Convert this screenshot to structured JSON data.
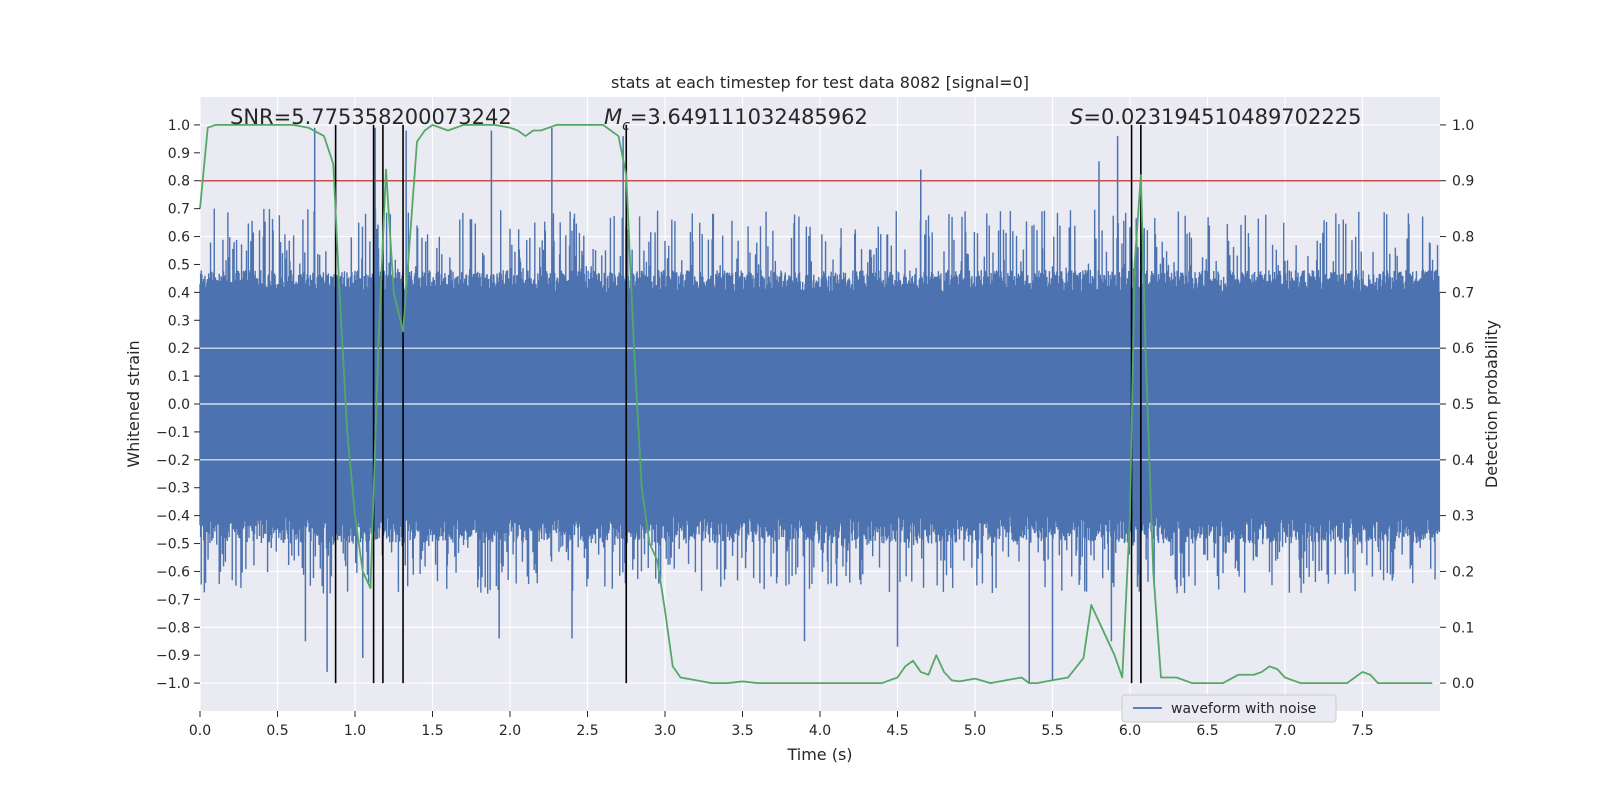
{
  "chart_data": {
    "type": "line",
    "title": "stats at each timestep for test data 8082 [signal=0]",
    "xlabel": "Time (s)",
    "ylabel": "Whitened strain",
    "y2label": "Detection probability",
    "xlim": [
      0.0,
      8.0
    ],
    "ylim": [
      -1.1,
      1.1
    ],
    "y2lim": [
      -0.05,
      1.05
    ],
    "x_ticks": [
      0.0,
      0.5,
      1.0,
      1.5,
      2.0,
      2.5,
      3.0,
      3.5,
      4.0,
      4.5,
      5.0,
      5.5,
      6.0,
      6.5,
      7.0,
      7.5
    ],
    "x_tick_labels": [
      "0.0",
      "0.5",
      "1.0",
      "1.5",
      "2.0",
      "2.5",
      "3.0",
      "3.5",
      "4.0",
      "4.5",
      "5.0",
      "5.5",
      "6.0",
      "6.5",
      "7.0",
      "7.5"
    ],
    "y_ticks": [
      1.0,
      0.9,
      0.8,
      0.7,
      0.6,
      0.5,
      0.4,
      0.3,
      0.2,
      0.1,
      0.0,
      -0.1,
      -0.2,
      -0.3,
      -0.4,
      -0.5,
      -0.6,
      -0.7,
      -0.8,
      -0.9,
      -1.0
    ],
    "y_tick_labels": [
      "1.0",
      "0.9",
      "0.8",
      "0.7",
      "0.6",
      "0.5",
      "0.4",
      "0.3",
      "0.2",
      "0.1",
      "0.0",
      "−0.1",
      "−0.2",
      "−0.3",
      "−0.4",
      "−0.5",
      "−0.6",
      "−0.7",
      "−0.8",
      "−0.9",
      "−1.0"
    ],
    "y2_ticks": [
      1.0,
      0.9,
      0.8,
      0.7,
      0.6,
      0.5,
      0.4,
      0.3,
      0.2,
      0.1,
      0.0
    ],
    "y2_tick_labels": [
      "1.0",
      "0.9",
      "0.8",
      "0.7",
      "0.6",
      "0.5",
      "0.4",
      "0.3",
      "0.2",
      "0.1",
      "0.0"
    ],
    "grid": true,
    "legend": {
      "entries": [
        "waveform with noise"
      ],
      "placement": "lower-right"
    },
    "annotations": {
      "snr": "SNR=5.775358200073242",
      "mc_symbol": "M",
      "mc_subscript": "c",
      "mc_value": "=3.649111032485962",
      "s_symbol": "S",
      "s_value": "=0.023194510489702225"
    },
    "threshold": {
      "value": 0.9,
      "axis": "y2",
      "color": "#c44e52"
    },
    "vertical_lines": [
      0.875,
      1.12,
      1.18,
      1.31,
      2.75,
      6.01,
      6.07
    ],
    "waveform": {
      "name": "waveform with noise",
      "color": "#4c72b0",
      "samples": 2000,
      "core_amplitude": 0.4,
      "seed": 8082,
      "spikes": [
        {
          "x": 0.74,
          "y": 0.99
        },
        {
          "x": 1.13,
          "y": 0.99
        },
        {
          "x": 1.33,
          "y": 0.98
        },
        {
          "x": 1.88,
          "y": 0.98
        },
        {
          "x": 2.27,
          "y": 0.99
        },
        {
          "x": 2.73,
          "y": 0.96
        },
        {
          "x": 4.65,
          "y": 0.84
        },
        {
          "x": 5.8,
          "y": 0.87
        },
        {
          "x": 5.92,
          "y": 0.96
        },
        {
          "x": 0.82,
          "y": -0.96
        },
        {
          "x": 1.05,
          "y": -0.91
        },
        {
          "x": 5.35,
          "y": -1.0
        },
        {
          "x": 5.5,
          "y": -0.99
        },
        {
          "x": 5.88,
          "y": -0.85
        },
        {
          "x": 4.5,
          "y": -0.87
        },
        {
          "x": 3.9,
          "y": -0.85
        },
        {
          "x": 0.68,
          "y": -0.85
        },
        {
          "x": 1.93,
          "y": -0.84
        },
        {
          "x": 2.4,
          "y": -0.84
        }
      ]
    },
    "detection_probability": {
      "color": "#55a868",
      "x": [
        0.0,
        0.05,
        0.1,
        0.2,
        0.3,
        0.4,
        0.5,
        0.6,
        0.7,
        0.8,
        0.86,
        0.9,
        0.95,
        1.0,
        1.05,
        1.1,
        1.15,
        1.2,
        1.25,
        1.31,
        1.35,
        1.4,
        1.45,
        1.5,
        1.6,
        1.7,
        1.8,
        1.9,
        2.0,
        2.05,
        2.1,
        2.15,
        2.2,
        2.3,
        2.4,
        2.5,
        2.6,
        2.7,
        2.75,
        2.8,
        2.85,
        2.9,
        2.95,
        3.0,
        3.05,
        3.1,
        3.2,
        3.3,
        3.4,
        3.5,
        3.6,
        3.7,
        3.8,
        3.9,
        4.0,
        4.1,
        4.2,
        4.3,
        4.4,
        4.5,
        4.55,
        4.6,
        4.65,
        4.7,
        4.75,
        4.8,
        4.85,
        4.9,
        5.0,
        5.1,
        5.2,
        5.3,
        5.35,
        5.4,
        5.5,
        5.6,
        5.7,
        5.75,
        5.8,
        5.85,
        5.9,
        5.95,
        6.0,
        6.03,
        6.07,
        6.1,
        6.15,
        6.2,
        6.3,
        6.4,
        6.5,
        6.6,
        6.7,
        6.8,
        6.85,
        6.9,
        6.95,
        7.0,
        7.05,
        7.1,
        7.2,
        7.3,
        7.4,
        7.5,
        7.55,
        7.6,
        7.7,
        7.8,
        7.9,
        7.95
      ],
      "y": [
        0.85,
        0.995,
        1.0,
        1.0,
        1.0,
        1.0,
        1.0,
        1.0,
        0.995,
        0.98,
        0.93,
        0.7,
        0.45,
        0.3,
        0.2,
        0.17,
        0.6,
        0.92,
        0.7,
        0.63,
        0.78,
        0.97,
        0.99,
        1.0,
        0.99,
        1.0,
        1.0,
        1.0,
        0.995,
        0.99,
        0.98,
        0.99,
        0.99,
        1.0,
        1.0,
        1.0,
        1.0,
        0.98,
        0.91,
        0.6,
        0.35,
        0.25,
        0.22,
        0.13,
        0.03,
        0.01,
        0.005,
        0.0,
        0.0,
        0.003,
        0.0,
        0.0,
        0.0,
        0.0,
        0.0,
        0.0,
        0.0,
        0.0,
        0.0,
        0.01,
        0.03,
        0.04,
        0.02,
        0.015,
        0.05,
        0.02,
        0.005,
        0.003,
        0.008,
        0.0,
        0.005,
        0.01,
        0.0,
        0.0,
        0.005,
        0.01,
        0.045,
        0.14,
        0.11,
        0.08,
        0.05,
        0.01,
        0.3,
        0.75,
        0.91,
        0.6,
        0.2,
        0.01,
        0.01,
        0.0,
        0.0,
        0.0,
        0.015,
        0.015,
        0.02,
        0.03,
        0.025,
        0.01,
        0.005,
        0.0,
        0.0,
        0.0,
        0.0,
        0.02,
        0.015,
        0.0,
        0.0,
        0.0,
        0.0,
        0.0
      ]
    }
  }
}
